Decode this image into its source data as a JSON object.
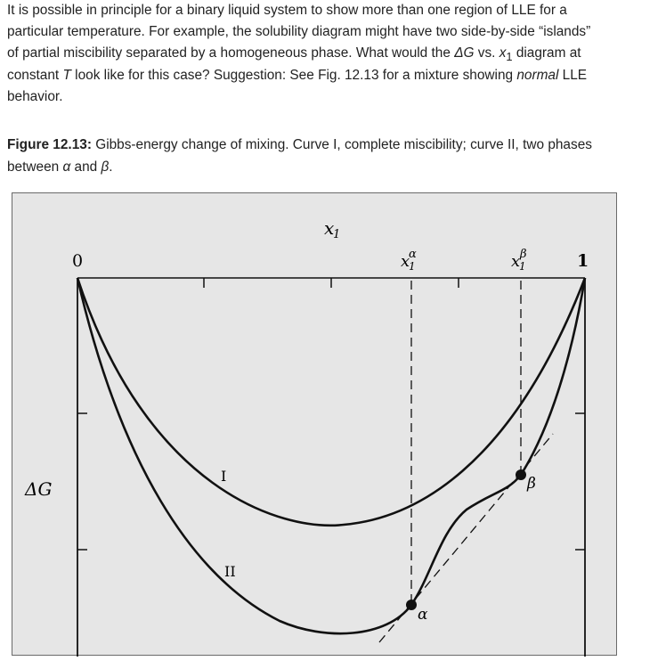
{
  "problem": {
    "line1": "It is possible in principle for a binary liquid system to show more than one region of LLE for a",
    "line2": "particular temperature. For example, the solubility diagram might have two  side-by-side “islands”",
    "line3a": "of partial miscibility separated by a homogeneous phase. What would the ",
    "line3_dg": "ΔG",
    "line3b": " vs. ",
    "line3_x": "x",
    "line3_sub": "1",
    "line3c": " diagram at",
    "line4a": "constant ",
    "line4_T": "T",
    "line4b": " look like for this case? Suggestion: See Fig. 12.13 for a mixture showing ",
    "line4_normal": "normal",
    "line4c": " LLE",
    "line5": "behavior."
  },
  "caption": {
    "label": "Figure 12.13:",
    "text1": " Gibbs-energy change of mixing. Curve I, complete miscibility; curve II, two phases",
    "text2a": "between ",
    "alpha": "α",
    "and": " and ",
    "beta": "β",
    "period": "."
  },
  "figure": {
    "x_axis_label": "x",
    "x_axis_sub": "1",
    "tick_zero": "0",
    "tick_one": "1",
    "x_alpha_base": "x",
    "x_alpha_sub": "1",
    "x_alpha_sup": "α",
    "x_beta_base": "x",
    "x_beta_sub": "1",
    "x_beta_sup": "β",
    "y_axis_label": "ΔG",
    "curve1_label": "I",
    "curve2_label": "II",
    "point_alpha_label": "α",
    "point_beta_label": "β",
    "line_color": "#111111",
    "background_color": "#e6e6e6"
  }
}
